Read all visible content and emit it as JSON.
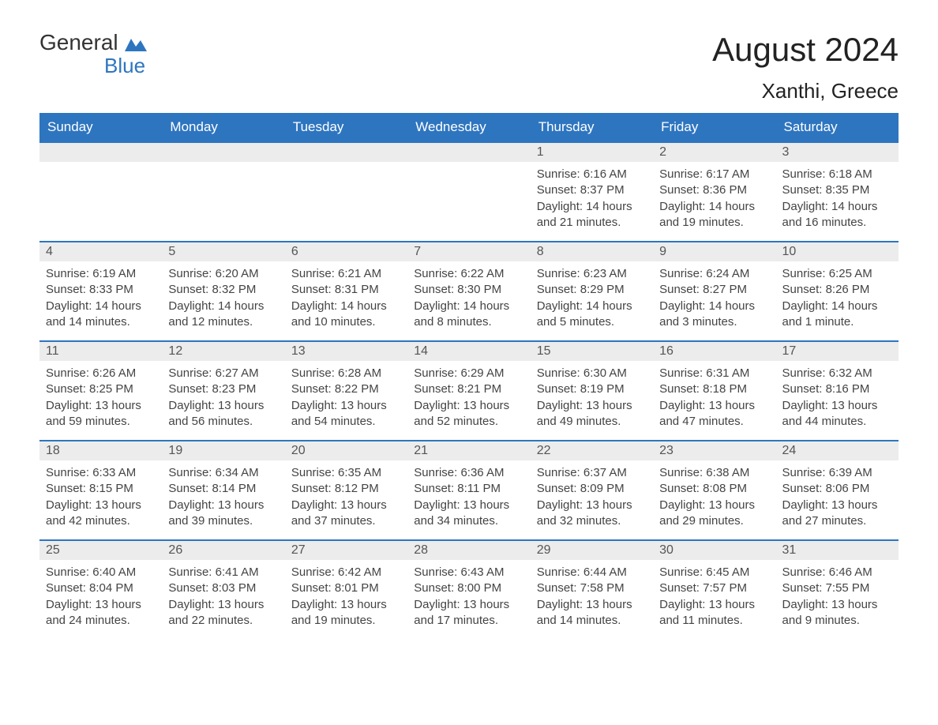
{
  "logo": {
    "top": "General",
    "bottom": "Blue",
    "flag_color": "#2e75c0"
  },
  "title": "August 2024",
  "location": "Xanthi, Greece",
  "weekdays": [
    "Sunday",
    "Monday",
    "Tuesday",
    "Wednesday",
    "Thursday",
    "Friday",
    "Saturday"
  ],
  "colors": {
    "header_bg": "#2e75c0",
    "header_text": "#ffffff",
    "daynum_bg": "#ececec",
    "border": "#2e75c0",
    "text": "#444444"
  },
  "weeks": [
    [
      null,
      null,
      null,
      null,
      {
        "n": "1",
        "sr": "Sunrise: 6:16 AM",
        "ss": "Sunset: 8:37 PM",
        "dl": "Daylight: 14 hours and 21 minutes."
      },
      {
        "n": "2",
        "sr": "Sunrise: 6:17 AM",
        "ss": "Sunset: 8:36 PM",
        "dl": "Daylight: 14 hours and 19 minutes."
      },
      {
        "n": "3",
        "sr": "Sunrise: 6:18 AM",
        "ss": "Sunset: 8:35 PM",
        "dl": "Daylight: 14 hours and 16 minutes."
      }
    ],
    [
      {
        "n": "4",
        "sr": "Sunrise: 6:19 AM",
        "ss": "Sunset: 8:33 PM",
        "dl": "Daylight: 14 hours and 14 minutes."
      },
      {
        "n": "5",
        "sr": "Sunrise: 6:20 AM",
        "ss": "Sunset: 8:32 PM",
        "dl": "Daylight: 14 hours and 12 minutes."
      },
      {
        "n": "6",
        "sr": "Sunrise: 6:21 AM",
        "ss": "Sunset: 8:31 PM",
        "dl": "Daylight: 14 hours and 10 minutes."
      },
      {
        "n": "7",
        "sr": "Sunrise: 6:22 AM",
        "ss": "Sunset: 8:30 PM",
        "dl": "Daylight: 14 hours and 8 minutes."
      },
      {
        "n": "8",
        "sr": "Sunrise: 6:23 AM",
        "ss": "Sunset: 8:29 PM",
        "dl": "Daylight: 14 hours and 5 minutes."
      },
      {
        "n": "9",
        "sr": "Sunrise: 6:24 AM",
        "ss": "Sunset: 8:27 PM",
        "dl": "Daylight: 14 hours and 3 minutes."
      },
      {
        "n": "10",
        "sr": "Sunrise: 6:25 AM",
        "ss": "Sunset: 8:26 PM",
        "dl": "Daylight: 14 hours and 1 minute."
      }
    ],
    [
      {
        "n": "11",
        "sr": "Sunrise: 6:26 AM",
        "ss": "Sunset: 8:25 PM",
        "dl": "Daylight: 13 hours and 59 minutes."
      },
      {
        "n": "12",
        "sr": "Sunrise: 6:27 AM",
        "ss": "Sunset: 8:23 PM",
        "dl": "Daylight: 13 hours and 56 minutes."
      },
      {
        "n": "13",
        "sr": "Sunrise: 6:28 AM",
        "ss": "Sunset: 8:22 PM",
        "dl": "Daylight: 13 hours and 54 minutes."
      },
      {
        "n": "14",
        "sr": "Sunrise: 6:29 AM",
        "ss": "Sunset: 8:21 PM",
        "dl": "Daylight: 13 hours and 52 minutes."
      },
      {
        "n": "15",
        "sr": "Sunrise: 6:30 AM",
        "ss": "Sunset: 8:19 PM",
        "dl": "Daylight: 13 hours and 49 minutes."
      },
      {
        "n": "16",
        "sr": "Sunrise: 6:31 AM",
        "ss": "Sunset: 8:18 PM",
        "dl": "Daylight: 13 hours and 47 minutes."
      },
      {
        "n": "17",
        "sr": "Sunrise: 6:32 AM",
        "ss": "Sunset: 8:16 PM",
        "dl": "Daylight: 13 hours and 44 minutes."
      }
    ],
    [
      {
        "n": "18",
        "sr": "Sunrise: 6:33 AM",
        "ss": "Sunset: 8:15 PM",
        "dl": "Daylight: 13 hours and 42 minutes."
      },
      {
        "n": "19",
        "sr": "Sunrise: 6:34 AM",
        "ss": "Sunset: 8:14 PM",
        "dl": "Daylight: 13 hours and 39 minutes."
      },
      {
        "n": "20",
        "sr": "Sunrise: 6:35 AM",
        "ss": "Sunset: 8:12 PM",
        "dl": "Daylight: 13 hours and 37 minutes."
      },
      {
        "n": "21",
        "sr": "Sunrise: 6:36 AM",
        "ss": "Sunset: 8:11 PM",
        "dl": "Daylight: 13 hours and 34 minutes."
      },
      {
        "n": "22",
        "sr": "Sunrise: 6:37 AM",
        "ss": "Sunset: 8:09 PM",
        "dl": "Daylight: 13 hours and 32 minutes."
      },
      {
        "n": "23",
        "sr": "Sunrise: 6:38 AM",
        "ss": "Sunset: 8:08 PM",
        "dl": "Daylight: 13 hours and 29 minutes."
      },
      {
        "n": "24",
        "sr": "Sunrise: 6:39 AM",
        "ss": "Sunset: 8:06 PM",
        "dl": "Daylight: 13 hours and 27 minutes."
      }
    ],
    [
      {
        "n": "25",
        "sr": "Sunrise: 6:40 AM",
        "ss": "Sunset: 8:04 PM",
        "dl": "Daylight: 13 hours and 24 minutes."
      },
      {
        "n": "26",
        "sr": "Sunrise: 6:41 AM",
        "ss": "Sunset: 8:03 PM",
        "dl": "Daylight: 13 hours and 22 minutes."
      },
      {
        "n": "27",
        "sr": "Sunrise: 6:42 AM",
        "ss": "Sunset: 8:01 PM",
        "dl": "Daylight: 13 hours and 19 minutes."
      },
      {
        "n": "28",
        "sr": "Sunrise: 6:43 AM",
        "ss": "Sunset: 8:00 PM",
        "dl": "Daylight: 13 hours and 17 minutes."
      },
      {
        "n": "29",
        "sr": "Sunrise: 6:44 AM",
        "ss": "Sunset: 7:58 PM",
        "dl": "Daylight: 13 hours and 14 minutes."
      },
      {
        "n": "30",
        "sr": "Sunrise: 6:45 AM",
        "ss": "Sunset: 7:57 PM",
        "dl": "Daylight: 13 hours and 11 minutes."
      },
      {
        "n": "31",
        "sr": "Sunrise: 6:46 AM",
        "ss": "Sunset: 7:55 PM",
        "dl": "Daylight: 13 hours and 9 minutes."
      }
    ]
  ]
}
